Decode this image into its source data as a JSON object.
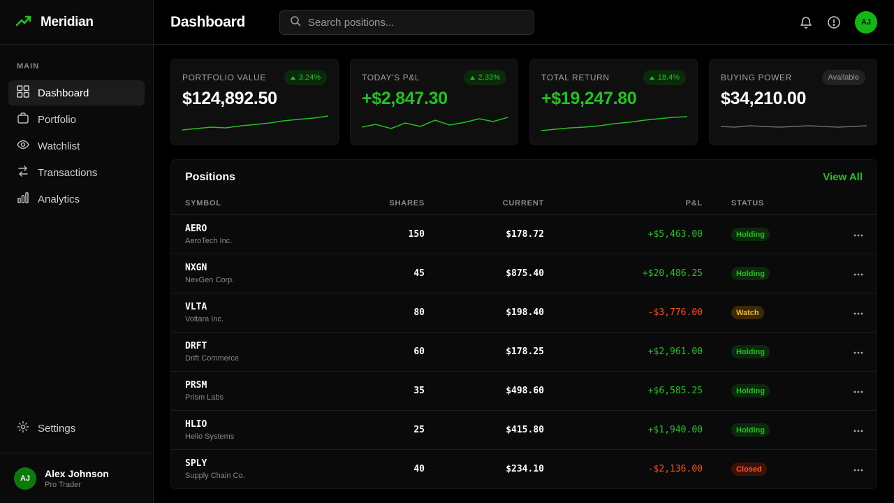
{
  "brand": {
    "name": "Meridian",
    "icon": "trending-up-icon"
  },
  "sidebar": {
    "section_label": "MAIN",
    "items": [
      {
        "label": "Dashboard",
        "icon": "grid-icon",
        "active": true
      },
      {
        "label": "Portfolio",
        "icon": "briefcase-icon",
        "active": false
      },
      {
        "label": "Watchlist",
        "icon": "eye-icon",
        "active": false
      },
      {
        "label": "Transactions",
        "icon": "swap-icon",
        "active": false
      },
      {
        "label": "Analytics",
        "icon": "bar-chart-icon",
        "active": false
      }
    ],
    "settings_label": "Settings",
    "user": {
      "initials": "AJ",
      "name": "Alex Johnson",
      "role": "Pro Trader"
    }
  },
  "header": {
    "title": "Dashboard",
    "search_placeholder": "Search positions...",
    "avatar_initials": "AJ"
  },
  "colors": {
    "accent": "#22c222",
    "negative": "#ff4d1a",
    "warning": "#f0b323"
  },
  "cards": [
    {
      "label": "PORTFOLIO VALUE",
      "badge": "3.24%",
      "badge_up": true,
      "value": "$124,892.50",
      "value_green": false
    },
    {
      "label": "TODAY'S P&L",
      "badge": "2.33%",
      "badge_up": true,
      "value": "+$2,847.30",
      "value_green": true
    },
    {
      "label": "TOTAL RETURN",
      "badge": "18.4%",
      "badge_up": true,
      "value": "+$19,247.80",
      "value_green": true
    },
    {
      "label": "BUYING POWER",
      "badge": "Available",
      "badge_up": false,
      "value": "$34,210.00",
      "value_green": false
    }
  ],
  "positions": {
    "title": "Positions",
    "view_all": "View All",
    "columns": [
      "SYMBOL",
      "SHARES",
      "CURRENT",
      "P&L",
      "STATUS"
    ],
    "rows": [
      {
        "symbol": "AERO",
        "name": "AeroTech Inc.",
        "shares": "150",
        "current": "$178.72",
        "pnl": "+$5,463.00",
        "status": "Holding"
      },
      {
        "symbol": "NXGN",
        "name": "NexGen Corp.",
        "shares": "45",
        "current": "$875.40",
        "pnl": "+$20,486.25",
        "status": "Holding"
      },
      {
        "symbol": "VLTA",
        "name": "Voltara Inc.",
        "shares": "80",
        "current": "$198.40",
        "pnl": "-$3,776.00",
        "status": "Watch"
      },
      {
        "symbol": "DRFT",
        "name": "Drift Commerce",
        "shares": "60",
        "current": "$178.25",
        "pnl": "+$2,961.00",
        "status": "Holding"
      },
      {
        "symbol": "PRSM",
        "name": "Prism Labs",
        "shares": "35",
        "current": "$498.60",
        "pnl": "+$6,585.25",
        "status": "Holding"
      },
      {
        "symbol": "HLIO",
        "name": "Helio Systems",
        "shares": "25",
        "current": "$415.80",
        "pnl": "+$1,940.00",
        "status": "Holding"
      },
      {
        "symbol": "SPLY",
        "name": "Supply Chain Co.",
        "shares": "40",
        "current": "$234.10",
        "pnl": "-$2,136.00",
        "status": "Closed"
      }
    ]
  }
}
